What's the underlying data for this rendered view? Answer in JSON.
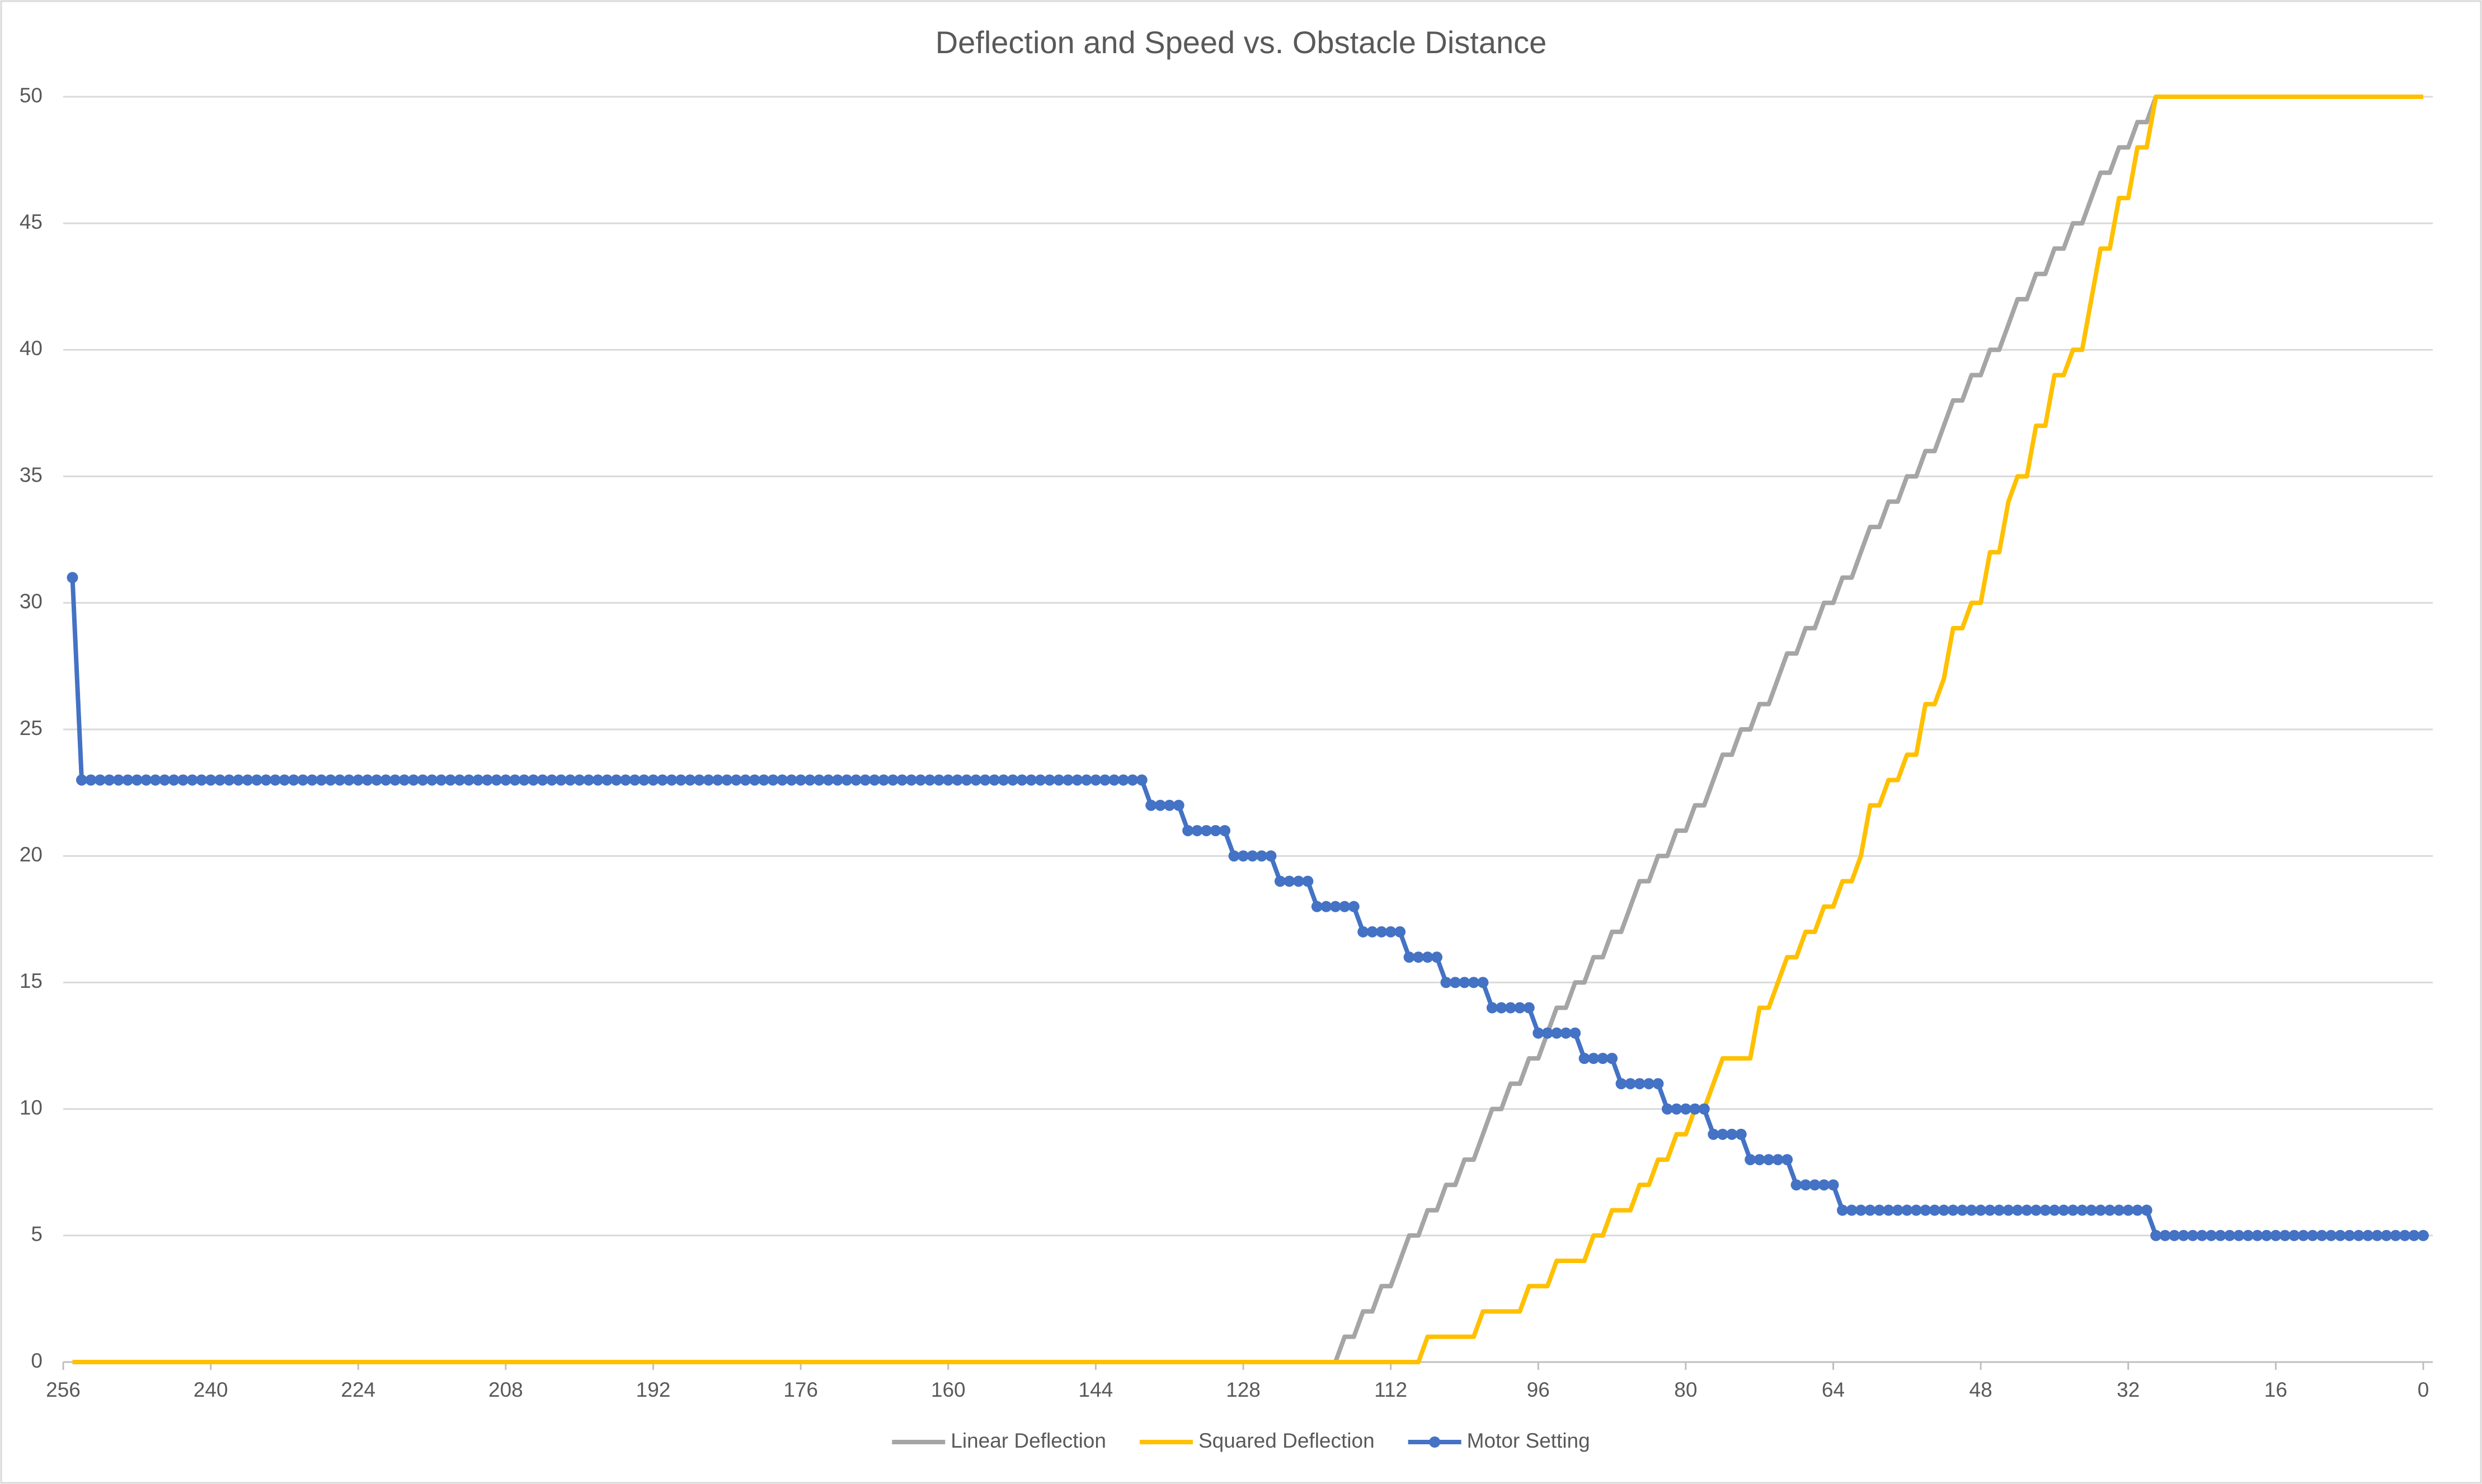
{
  "chart_data": {
    "type": "line",
    "title": "Deflection and Speed vs. Obstacle Distance",
    "x": [
      255,
      254,
      253,
      252,
      251,
      250,
      249,
      248,
      247,
      246,
      245,
      244,
      243,
      242,
      241,
      240,
      239,
      238,
      237,
      236,
      235,
      234,
      233,
      232,
      231,
      230,
      229,
      228,
      227,
      226,
      225,
      224,
      223,
      222,
      221,
      220,
      219,
      218,
      217,
      216,
      215,
      214,
      213,
      212,
      211,
      210,
      209,
      208,
      207,
      206,
      205,
      204,
      203,
      202,
      201,
      200,
      199,
      198,
      197,
      196,
      195,
      194,
      193,
      192,
      191,
      190,
      189,
      188,
      187,
      186,
      185,
      184,
      183,
      182,
      181,
      180,
      179,
      178,
      177,
      176,
      175,
      174,
      173,
      172,
      171,
      170,
      169,
      168,
      167,
      166,
      165,
      164,
      163,
      162,
      161,
      160,
      159,
      158,
      157,
      156,
      155,
      154,
      153,
      152,
      151,
      150,
      149,
      148,
      147,
      146,
      145,
      144,
      143,
      142,
      141,
      140,
      139,
      138,
      137,
      136,
      135,
      134,
      133,
      132,
      131,
      130,
      129,
      128,
      127,
      126,
      125,
      124,
      123,
      122,
      121,
      120,
      119,
      118,
      117,
      116,
      115,
      114,
      113,
      112,
      111,
      110,
      109,
      108,
      107,
      106,
      105,
      104,
      103,
      102,
      101,
      100,
      99,
      98,
      97,
      96,
      95,
      94,
      93,
      92,
      91,
      90,
      89,
      88,
      87,
      86,
      85,
      84,
      83,
      82,
      81,
      80,
      79,
      78,
      77,
      76,
      75,
      74,
      73,
      72,
      71,
      70,
      69,
      68,
      67,
      66,
      65,
      64,
      63,
      62,
      61,
      60,
      59,
      58,
      57,
      56,
      55,
      54,
      53,
      52,
      51,
      50,
      49,
      48,
      47,
      46,
      45,
      44,
      43,
      42,
      41,
      40,
      39,
      38,
      37,
      36,
      35,
      34,
      33,
      32,
      31,
      30,
      29,
      28,
      27,
      26,
      25,
      24,
      23,
      22,
      21,
      20,
      19,
      18,
      17,
      16,
      15,
      14,
      13,
      12,
      11,
      10,
      9,
      8,
      7,
      6,
      5,
      4,
      3,
      2,
      1,
      0
    ],
    "series": [
      {
        "name": "Linear Deflection",
        "color": "#a5a5a5",
        "marker": false,
        "values": [
          0,
          0,
          0,
          0,
          0,
          0,
          0,
          0,
          0,
          0,
          0,
          0,
          0,
          0,
          0,
          0,
          0,
          0,
          0,
          0,
          0,
          0,
          0,
          0,
          0,
          0,
          0,
          0,
          0,
          0,
          0,
          0,
          0,
          0,
          0,
          0,
          0,
          0,
          0,
          0,
          0,
          0,
          0,
          0,
          0,
          0,
          0,
          0,
          0,
          0,
          0,
          0,
          0,
          0,
          0,
          0,
          0,
          0,
          0,
          0,
          0,
          0,
          0,
          0,
          0,
          0,
          0,
          0,
          0,
          0,
          0,
          0,
          0,
          0,
          0,
          0,
          0,
          0,
          0,
          0,
          0,
          0,
          0,
          0,
          0,
          0,
          0,
          0,
          0,
          0,
          0,
          0,
          0,
          0,
          0,
          0,
          0,
          0,
          0,
          0,
          0,
          0,
          0,
          0,
          0,
          0,
          0,
          0,
          0,
          0,
          0,
          0,
          0,
          0,
          0,
          0,
          0,
          0,
          0,
          0,
          0,
          0,
          0,
          0,
          0,
          0,
          0,
          0,
          0,
          0,
          0,
          0,
          0,
          0,
          0,
          0,
          0,
          0,
          1,
          1,
          2,
          2,
          3,
          3,
          4,
          5,
          5,
          6,
          6,
          7,
          7,
          8,
          8,
          9,
          10,
          10,
          11,
          11,
          12,
          12,
          13,
          14,
          14,
          15,
          15,
          16,
          16,
          17,
          17,
          18,
          19,
          19,
          20,
          20,
          21,
          21,
          22,
          22,
          23,
          24,
          24,
          25,
          25,
          26,
          26,
          27,
          28,
          28,
          29,
          29,
          30,
          30,
          31,
          31,
          32,
          33,
          33,
          34,
          34,
          35,
          35,
          36,
          36,
          37,
          38,
          38,
          39,
          39,
          40,
          40,
          41,
          42,
          42,
          43,
          43,
          44,
          44,
          45,
          45,
          46,
          47,
          47,
          48,
          48,
          49,
          49,
          50,
          50,
          50,
          50,
          50,
          50,
          50,
          50,
          50,
          50,
          50,
          50,
          50,
          50,
          50,
          50,
          50,
          50,
          50,
          50,
          50,
          50,
          50,
          50,
          50,
          50,
          50,
          50,
          50,
          50
        ]
      },
      {
        "name": "Squared Deflection",
        "color": "#ffc000",
        "marker": false,
        "values": [
          0,
          0,
          0,
          0,
          0,
          0,
          0,
          0,
          0,
          0,
          0,
          0,
          0,
          0,
          0,
          0,
          0,
          0,
          0,
          0,
          0,
          0,
          0,
          0,
          0,
          0,
          0,
          0,
          0,
          0,
          0,
          0,
          0,
          0,
          0,
          0,
          0,
          0,
          0,
          0,
          0,
          0,
          0,
          0,
          0,
          0,
          0,
          0,
          0,
          0,
          0,
          0,
          0,
          0,
          0,
          0,
          0,
          0,
          0,
          0,
          0,
          0,
          0,
          0,
          0,
          0,
          0,
          0,
          0,
          0,
          0,
          0,
          0,
          0,
          0,
          0,
          0,
          0,
          0,
          0,
          0,
          0,
          0,
          0,
          0,
          0,
          0,
          0,
          0,
          0,
          0,
          0,
          0,
          0,
          0,
          0,
          0,
          0,
          0,
          0,
          0,
          0,
          0,
          0,
          0,
          0,
          0,
          0,
          0,
          0,
          0,
          0,
          0,
          0,
          0,
          0,
          0,
          0,
          0,
          0,
          0,
          0,
          0,
          0,
          0,
          0,
          0,
          0,
          0,
          0,
          0,
          0,
          0,
          0,
          0,
          0,
          0,
          0,
          0,
          0,
          0,
          0,
          0,
          0,
          0,
          0,
          0,
          1,
          1,
          1,
          1,
          1,
          1,
          2,
          2,
          2,
          2,
          2,
          3,
          3,
          3,
          4,
          4,
          4,
          4,
          5,
          5,
          6,
          6,
          6,
          7,
          7,
          8,
          8,
          9,
          9,
          10,
          10,
          11,
          12,
          12,
          12,
          12,
          14,
          14,
          15,
          16,
          16,
          17,
          17,
          18,
          18,
          19,
          19,
          20,
          22,
          22,
          23,
          23,
          24,
          24,
          26,
          26,
          27,
          29,
          29,
          30,
          30,
          32,
          32,
          34,
          35,
          35,
          37,
          37,
          39,
          39,
          40,
          40,
          42,
          44,
          44,
          46,
          46,
          48,
          48,
          50,
          50,
          50,
          50,
          50,
          50,
          50,
          50,
          50,
          50,
          50,
          50,
          50,
          50,
          50,
          50,
          50,
          50,
          50,
          50,
          50,
          50,
          50,
          50,
          50,
          50,
          50,
          50,
          50,
          50
        ]
      },
      {
        "name": "Motor Setting",
        "color": "#4472c4",
        "marker": true,
        "values": [
          31,
          23,
          23,
          23,
          23,
          23,
          23,
          23,
          23,
          23,
          23,
          23,
          23,
          23,
          23,
          23,
          23,
          23,
          23,
          23,
          23,
          23,
          23,
          23,
          23,
          23,
          23,
          23,
          23,
          23,
          23,
          23,
          23,
          23,
          23,
          23,
          23,
          23,
          23,
          23,
          23,
          23,
          23,
          23,
          23,
          23,
          23,
          23,
          23,
          23,
          23,
          23,
          23,
          23,
          23,
          23,
          23,
          23,
          23,
          23,
          23,
          23,
          23,
          23,
          23,
          23,
          23,
          23,
          23,
          23,
          23,
          23,
          23,
          23,
          23,
          23,
          23,
          23,
          23,
          23,
          23,
          23,
          23,
          23,
          23,
          23,
          23,
          23,
          23,
          23,
          23,
          23,
          23,
          23,
          23,
          23,
          23,
          23,
          23,
          23,
          23,
          23,
          23,
          23,
          23,
          23,
          23,
          23,
          23,
          23,
          23,
          23,
          23,
          23,
          23,
          23,
          23,
          22,
          22,
          22,
          22,
          21,
          21,
          21,
          21,
          21,
          20,
          20,
          20,
          20,
          20,
          19,
          19,
          19,
          19,
          18,
          18,
          18,
          18,
          18,
          17,
          17,
          17,
          17,
          17,
          16,
          16,
          16,
          16,
          15,
          15,
          15,
          15,
          15,
          14,
          14,
          14,
          14,
          14,
          13,
          13,
          13,
          13,
          13,
          12,
          12,
          12,
          12,
          11,
          11,
          11,
          11,
          11,
          10,
          10,
          10,
          10,
          10,
          9,
          9,
          9,
          9,
          8,
          8,
          8,
          8,
          8,
          7,
          7,
          7,
          7,
          7,
          6,
          6,
          6,
          6,
          6,
          6,
          6,
          6,
          6,
          6,
          6,
          6,
          6,
          6,
          6,
          6,
          6,
          6,
          6,
          6,
          6,
          6,
          6,
          6,
          6,
          6,
          6,
          6,
          6,
          6,
          6,
          6,
          6,
          6,
          5,
          5,
          5,
          5,
          5,
          5,
          5,
          5,
          5,
          5,
          5,
          5,
          5,
          5,
          5,
          5,
          5,
          5,
          5,
          5,
          5,
          5,
          5,
          5,
          5,
          5,
          5,
          5,
          5,
          5
        ]
      }
    ],
    "xlim": [
      256,
      0
    ],
    "xticks": [
      256,
      240,
      224,
      208,
      192,
      176,
      160,
      144,
      128,
      112,
      96,
      80,
      64,
      48,
      32,
      16,
      0
    ],
    "ylim": [
      0,
      50
    ],
    "yticks": [
      0,
      5,
      10,
      15,
      20,
      25,
      30,
      35,
      40,
      45,
      50
    ],
    "grid": true,
    "legend": "bottom"
  }
}
